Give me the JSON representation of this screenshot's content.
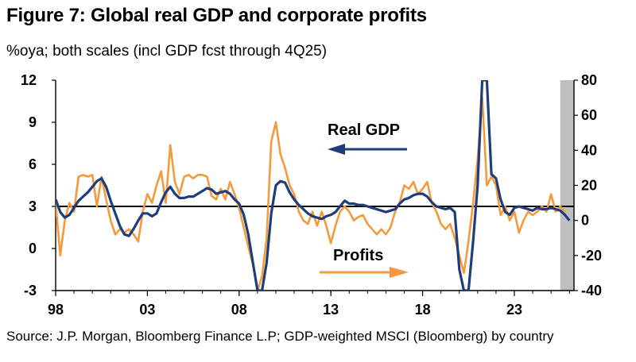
{
  "chart_data": {
    "type": "line",
    "title": "Figure 7: Global real GDP and corporate profits",
    "subtitle": "%oya; both scales (incl GDP fcst through 4Q25)",
    "source": "Source: J.P. Morgan, Bloomberg Finance L.P; GDP-weighted MSCI (Bloomberg) by country",
    "x_range": [
      1998,
      2026.25
    ],
    "x_ticks": [
      {
        "value": 1998,
        "label": "98"
      },
      {
        "value": 2003,
        "label": "03"
      },
      {
        "value": 2008,
        "label": "08"
      },
      {
        "value": 2013,
        "label": "13"
      },
      {
        "value": 2018,
        "label": "18"
      },
      {
        "value": 2023,
        "label": "23"
      }
    ],
    "y_left": {
      "range": [
        -3,
        12
      ],
      "ticks": [
        -3,
        0,
        3,
        6,
        9,
        12
      ]
    },
    "y_right": {
      "range": [
        -40,
        80
      ],
      "ticks": [
        -40,
        -20,
        0,
        20,
        40,
        60,
        80
      ]
    },
    "zero_line": 3,
    "forecast_shade": {
      "from": 2025.5,
      "to": 2026.25,
      "color": "#bfbfbf"
    },
    "annotations": [
      {
        "text": "Real GDP",
        "arrow": "left",
        "color": "#1f3d7a"
      },
      {
        "text": "Profits",
        "arrow": "right",
        "color": "#f59a3c"
      }
    ],
    "series": [
      {
        "name": "Real GDP",
        "axis": "left",
        "color": "#1f3d7a",
        "points": [
          [
            1998.0,
            3.5
          ],
          [
            1998.25,
            2.6
          ],
          [
            1998.5,
            2.2
          ],
          [
            1998.75,
            2.4
          ],
          [
            1999.0,
            2.9
          ],
          [
            1999.25,
            3.4
          ],
          [
            1999.5,
            3.7
          ],
          [
            1999.75,
            4.0
          ],
          [
            2000.0,
            4.4
          ],
          [
            2000.25,
            4.8
          ],
          [
            2000.5,
            5.0
          ],
          [
            2000.75,
            4.4
          ],
          [
            2001.0,
            3.4
          ],
          [
            2001.25,
            2.5
          ],
          [
            2001.5,
            1.6
          ],
          [
            2001.75,
            1.0
          ],
          [
            2002.0,
            0.9
          ],
          [
            2002.25,
            1.4
          ],
          [
            2002.5,
            2.0
          ],
          [
            2002.75,
            2.5
          ],
          [
            2003.0,
            2.5
          ],
          [
            2003.25,
            2.3
          ],
          [
            2003.5,
            2.5
          ],
          [
            2003.75,
            3.3
          ],
          [
            2004.0,
            4.0
          ],
          [
            2004.25,
            4.4
          ],
          [
            2004.5,
            3.9
          ],
          [
            2004.75,
            3.6
          ],
          [
            2005.0,
            3.6
          ],
          [
            2005.25,
            3.7
          ],
          [
            2005.5,
            3.7
          ],
          [
            2005.75,
            3.9
          ],
          [
            2006.0,
            4.1
          ],
          [
            2006.25,
            4.3
          ],
          [
            2006.5,
            4.2
          ],
          [
            2006.75,
            3.9
          ],
          [
            2007.0,
            4.0
          ],
          [
            2007.25,
            4.1
          ],
          [
            2007.5,
            3.9
          ],
          [
            2007.75,
            3.5
          ],
          [
            2008.0,
            3.2
          ],
          [
            2008.25,
            2.4
          ],
          [
            2008.5,
            1.0
          ],
          [
            2008.75,
            -1.0
          ],
          [
            2009.0,
            -3.0
          ],
          [
            2009.25,
            -3.0
          ],
          [
            2009.5,
            -1.0
          ],
          [
            2009.75,
            2.5
          ],
          [
            2010.0,
            4.5
          ],
          [
            2010.25,
            4.8
          ],
          [
            2010.5,
            4.7
          ],
          [
            2010.75,
            4.0
          ],
          [
            2011.0,
            3.5
          ],
          [
            2011.25,
            3.1
          ],
          [
            2011.5,
            2.8
          ],
          [
            2011.75,
            2.5
          ],
          [
            2012.0,
            2.3
          ],
          [
            2012.25,
            2.2
          ],
          [
            2012.5,
            2.1
          ],
          [
            2012.75,
            2.3
          ],
          [
            2013.0,
            2.4
          ],
          [
            2013.25,
            2.6
          ],
          [
            2013.5,
            3.0
          ],
          [
            2013.75,
            3.4
          ],
          [
            2014.0,
            3.2
          ],
          [
            2014.25,
            3.2
          ],
          [
            2014.5,
            3.1
          ],
          [
            2014.75,
            3.1
          ],
          [
            2015.0,
            3.0
          ],
          [
            2015.25,
            2.9
          ],
          [
            2015.5,
            2.8
          ],
          [
            2015.75,
            2.7
          ],
          [
            2016.0,
            2.6
          ],
          [
            2016.25,
            2.7
          ],
          [
            2016.5,
            2.8
          ],
          [
            2016.75,
            3.2
          ],
          [
            2017.0,
            3.5
          ],
          [
            2017.25,
            3.6
          ],
          [
            2017.5,
            3.8
          ],
          [
            2017.75,
            3.9
          ],
          [
            2018.0,
            3.9
          ],
          [
            2018.25,
            3.7
          ],
          [
            2018.5,
            3.3
          ],
          [
            2018.75,
            3.0
          ],
          [
            2019.0,
            2.9
          ],
          [
            2019.25,
            2.8
          ],
          [
            2019.5,
            2.9
          ],
          [
            2019.75,
            2.6
          ],
          [
            2020.0,
            -1.5
          ],
          [
            2020.25,
            -3.0
          ],
          [
            2020.5,
            -3.0
          ],
          [
            2020.75,
            0.5
          ],
          [
            2021.0,
            4.5
          ],
          [
            2021.25,
            12.0
          ],
          [
            2021.5,
            12.0
          ],
          [
            2021.75,
            5.3
          ],
          [
            2022.0,
            5.0
          ],
          [
            2022.25,
            3.5
          ],
          [
            2022.5,
            2.6
          ],
          [
            2022.75,
            2.4
          ],
          [
            2023.0,
            2.9
          ],
          [
            2023.25,
            3.0
          ],
          [
            2023.5,
            2.9
          ],
          [
            2023.75,
            2.8
          ],
          [
            2024.0,
            2.7
          ],
          [
            2024.25,
            2.9
          ],
          [
            2024.5,
            2.8
          ],
          [
            2024.75,
            2.8
          ],
          [
            2025.0,
            2.9
          ],
          [
            2025.25,
            2.8
          ],
          [
            2025.5,
            2.7
          ],
          [
            2025.75,
            2.4
          ],
          [
            2026.0,
            2.0
          ]
        ]
      },
      {
        "name": "Profits",
        "axis": "right",
        "color": "#f59a3c",
        "points": [
          [
            1998.0,
            10
          ],
          [
            1998.25,
            -20
          ],
          [
            1998.5,
            0
          ],
          [
            1998.75,
            10
          ],
          [
            1999.0,
            5
          ],
          [
            1999.25,
            25
          ],
          [
            1999.5,
            26
          ],
          [
            1999.75,
            25
          ],
          [
            2000.0,
            26
          ],
          [
            2000.25,
            8
          ],
          [
            2000.5,
            25
          ],
          [
            2000.75,
            12
          ],
          [
            2001.0,
            0
          ],
          [
            2001.25,
            -8
          ],
          [
            2001.5,
            -5
          ],
          [
            2001.75,
            -7
          ],
          [
            2002.0,
            -5
          ],
          [
            2002.25,
            -8
          ],
          [
            2002.5,
            -12
          ],
          [
            2002.75,
            5
          ],
          [
            2003.0,
            15
          ],
          [
            2003.25,
            10
          ],
          [
            2003.5,
            20
          ],
          [
            2003.75,
            28
          ],
          [
            2004.0,
            10
          ],
          [
            2004.25,
            43
          ],
          [
            2004.5,
            22
          ],
          [
            2004.75,
            15
          ],
          [
            2005.0,
            25
          ],
          [
            2005.25,
            26
          ],
          [
            2005.5,
            24
          ],
          [
            2005.75,
            26
          ],
          [
            2006.0,
            26
          ],
          [
            2006.25,
            25
          ],
          [
            2006.5,
            14
          ],
          [
            2006.75,
            12
          ],
          [
            2007.0,
            18
          ],
          [
            2007.25,
            12
          ],
          [
            2007.5,
            22
          ],
          [
            2007.75,
            15
          ],
          [
            2008.0,
            7
          ],
          [
            2008.25,
            -4
          ],
          [
            2008.5,
            -15
          ],
          [
            2008.75,
            -25
          ],
          [
            2009.0,
            -40
          ],
          [
            2009.25,
            -32
          ],
          [
            2009.5,
            -10
          ],
          [
            2009.75,
            45
          ],
          [
            2010.0,
            56
          ],
          [
            2010.25,
            38
          ],
          [
            2010.5,
            30
          ],
          [
            2010.75,
            20
          ],
          [
            2011.0,
            15
          ],
          [
            2011.25,
            5
          ],
          [
            2011.5,
            0
          ],
          [
            2011.75,
            -2
          ],
          [
            2012.0,
            5
          ],
          [
            2012.25,
            -3
          ],
          [
            2012.5,
            5
          ],
          [
            2012.75,
            -3
          ],
          [
            2013.0,
            -13
          ],
          [
            2013.25,
            -3
          ],
          [
            2013.5,
            5
          ],
          [
            2013.75,
            8
          ],
          [
            2014.0,
            5
          ],
          [
            2014.25,
            0
          ],
          [
            2014.5,
            2
          ],
          [
            2014.75,
            3
          ],
          [
            2015.0,
            -2
          ],
          [
            2015.25,
            -5
          ],
          [
            2015.5,
            -8
          ],
          [
            2015.75,
            -5
          ],
          [
            2016.0,
            -8
          ],
          [
            2016.25,
            -4
          ],
          [
            2016.5,
            5
          ],
          [
            2016.75,
            10
          ],
          [
            2017.0,
            20
          ],
          [
            2017.25,
            18
          ],
          [
            2017.5,
            22
          ],
          [
            2017.75,
            15
          ],
          [
            2018.0,
            18
          ],
          [
            2018.25,
            22
          ],
          [
            2018.5,
            10
          ],
          [
            2018.75,
            5
          ],
          [
            2019.0,
            -2
          ],
          [
            2019.25,
            -5
          ],
          [
            2019.5,
            -2
          ],
          [
            2019.75,
            -10
          ],
          [
            2020.0,
            -20
          ],
          [
            2020.25,
            -30
          ],
          [
            2020.5,
            -12
          ],
          [
            2020.75,
            10
          ],
          [
            2021.0,
            35
          ],
          [
            2021.25,
            70
          ],
          [
            2021.5,
            20
          ],
          [
            2021.75,
            25
          ],
          [
            2022.0,
            20
          ],
          [
            2022.25,
            3
          ],
          [
            2022.5,
            8
          ],
          [
            2022.75,
            0
          ],
          [
            2023.0,
            5
          ],
          [
            2023.25,
            -7
          ],
          [
            2023.5,
            0
          ],
          [
            2023.75,
            5
          ],
          [
            2024.0,
            3
          ],
          [
            2024.25,
            5
          ],
          [
            2024.5,
            8
          ],
          [
            2024.75,
            5
          ],
          [
            2025.0,
            15
          ],
          [
            2025.25,
            5
          ],
          [
            2025.5,
            8
          ],
          [
            2025.75,
            5
          ]
        ]
      }
    ]
  }
}
